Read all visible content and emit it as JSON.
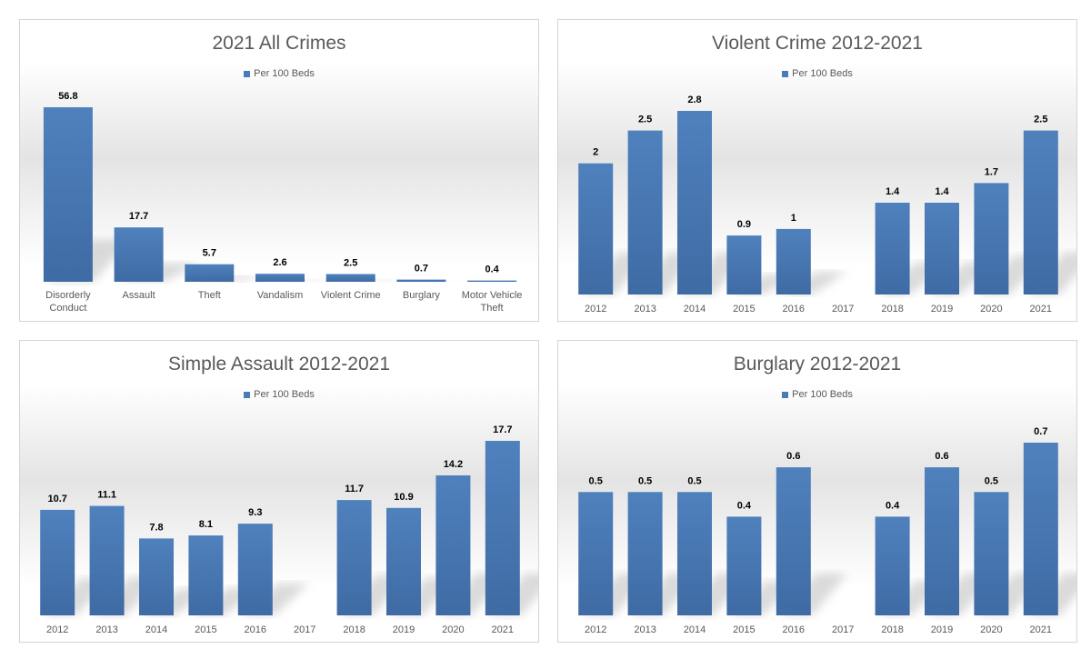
{
  "colors": {
    "bar_top": "#4f81bd",
    "bar_bottom": "#3f6ba4",
    "legend_swatch": "#4a7ab7"
  },
  "chart_data": [
    {
      "type": "bar",
      "title": "2021 All Crimes",
      "legend": [
        "Per 100 Beds"
      ],
      "categories": [
        [
          "Disorderly",
          "Conduct"
        ],
        [
          "Assault"
        ],
        [
          "Theft"
        ],
        [
          "Vandalism"
        ],
        [
          "Violent Crime"
        ],
        [
          "Burglary"
        ],
        [
          "Motor Vehicle",
          "Theft"
        ]
      ],
      "series": [
        {
          "name": "Per 100 Beds",
          "values": [
            56.8,
            17.7,
            5.7,
            2.6,
            2.5,
            0.7,
            0.4
          ]
        }
      ],
      "labels": [
        "56.8",
        "17.7",
        "5.7",
        "2.6",
        "2.5",
        "0.7",
        "0.4"
      ],
      "ylim": [
        0,
        56.8
      ]
    },
    {
      "type": "bar",
      "title": "Violent Crime 2012-2021",
      "legend": [
        "Per 100 Beds"
      ],
      "categories": [
        [
          "2012"
        ],
        [
          "2013"
        ],
        [
          "2014"
        ],
        [
          "2015"
        ],
        [
          "2016"
        ],
        [
          "2017"
        ],
        [
          "2018"
        ],
        [
          "2019"
        ],
        [
          "2020"
        ],
        [
          "2021"
        ]
      ],
      "series": [
        {
          "name": "Per 100 Beds",
          "values": [
            2,
            2.5,
            2.8,
            0.9,
            1,
            null,
            1.4,
            1.4,
            1.7,
            2.5
          ]
        }
      ],
      "labels": [
        "2",
        "2.5",
        "2.8",
        "0.9",
        "1",
        "",
        "1.4",
        "1.4",
        "1.7",
        "2.5"
      ],
      "ylim": [
        0,
        2.8
      ]
    },
    {
      "type": "bar",
      "title": "Simple Assault 2012-2021",
      "legend": [
        "Per 100 Beds"
      ],
      "categories": [
        [
          "2012"
        ],
        [
          "2013"
        ],
        [
          "2014"
        ],
        [
          "2015"
        ],
        [
          "2016"
        ],
        [
          "2017"
        ],
        [
          "2018"
        ],
        [
          "2019"
        ],
        [
          "2020"
        ],
        [
          "2021"
        ]
      ],
      "series": [
        {
          "name": "Per 100 Beds",
          "values": [
            10.7,
            11.1,
            7.8,
            8.1,
            9.3,
            null,
            11.7,
            10.9,
            14.2,
            17.7
          ]
        }
      ],
      "labels": [
        "10.7",
        "11.1",
        "7.8",
        "8.1",
        "9.3",
        "",
        "11.7",
        "10.9",
        "14.2",
        "17.7"
      ],
      "ylim": [
        0,
        17.7
      ]
    },
    {
      "type": "bar",
      "title": "Burglary 2012-2021",
      "legend": [
        "Per 100 Beds"
      ],
      "categories": [
        [
          "2012"
        ],
        [
          "2013"
        ],
        [
          "2014"
        ],
        [
          "2015"
        ],
        [
          "2016"
        ],
        [
          "2017"
        ],
        [
          "2018"
        ],
        [
          "2019"
        ],
        [
          "2020"
        ],
        [
          "2021"
        ]
      ],
      "series": [
        {
          "name": "Per 100 Beds",
          "values": [
            0.5,
            0.5,
            0.5,
            0.4,
            0.6,
            null,
            0.4,
            0.6,
            0.5,
            0.7
          ]
        }
      ],
      "labels": [
        "0.5",
        "0.5",
        "0.5",
        "0.4",
        "0.6",
        "",
        "0.4",
        "0.6",
        "0.5",
        "0.7"
      ],
      "ylim": [
        0,
        0.7
      ]
    }
  ]
}
